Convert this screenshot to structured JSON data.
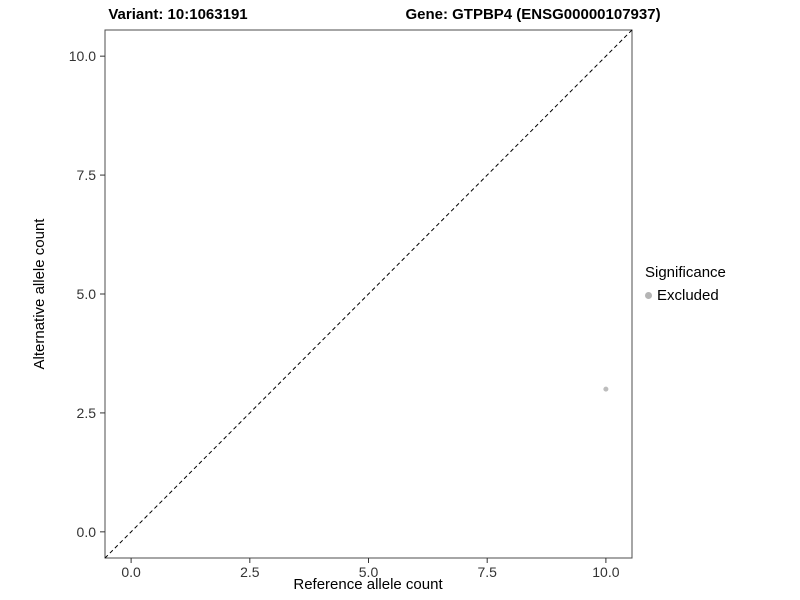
{
  "titles": {
    "left": "Variant: 10:1063191",
    "right": "Gene: GTPBP4 (ENSG00000107937)"
  },
  "chart_data": {
    "type": "scatter",
    "title_left": "Variant: 10:1063191",
    "title_right": "Gene: GTPBP4 (ENSG00000107937)",
    "xlabel": "Reference allele count",
    "ylabel": "Alternative allele count",
    "xlim": [
      -0.55,
      10.55
    ],
    "ylim": [
      -0.55,
      10.55
    ],
    "xticks": [
      0.0,
      2.5,
      5.0,
      7.5,
      10.0
    ],
    "yticks": [
      0.0,
      2.5,
      5.0,
      7.5,
      10.0
    ],
    "xtick_labels": [
      "0.0",
      "2.5",
      "5.0",
      "7.5",
      "10.0"
    ],
    "ytick_labels": [
      "0.0",
      "2.5",
      "5.0",
      "7.5",
      "10.0"
    ],
    "grid": false,
    "points": [
      {
        "x": 10,
        "y": 3,
        "series": "Excluded",
        "color": "#bdbdbd"
      }
    ],
    "reference_line": {
      "type": "identity",
      "slope": 1,
      "intercept": 0,
      "style": "dashed",
      "color": "#000000"
    },
    "legend": {
      "title": "Significance",
      "position": "right",
      "entries": [
        {
          "label": "Excluded",
          "color": "#b5b5b5"
        }
      ]
    },
    "colors": {
      "panel_border": "#4d4d4d",
      "tick": "#333333",
      "tick_label": "#333333",
      "axis_title": "#000000"
    }
  }
}
